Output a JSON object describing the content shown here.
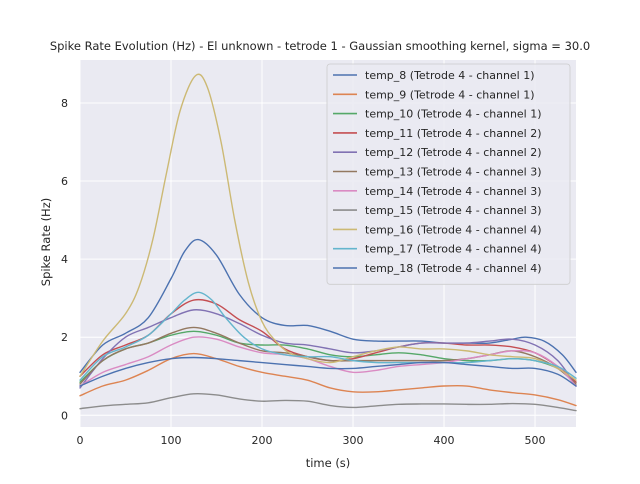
{
  "chart_data": {
    "type": "line",
    "title": "Spike Rate Evolution (Hz) - El unknown - tetrode 1 - Gaussian smoothing kernel, sigma = 30.0",
    "xlabel": "time (s)",
    "ylabel": "Spike Rate (Hz)",
    "xlim": [
      0,
      545
    ],
    "ylim": [
      -0.3,
      9.1
    ],
    "xticks": [
      0,
      100,
      200,
      300,
      400,
      500
    ],
    "yticks": [
      0,
      2,
      4,
      6,
      8
    ],
    "grid": true,
    "legend_position": "top-right",
    "background": "#eaeaf2",
    "series": [
      {
        "name": "temp_8 (Tetrode 4 - channel 1)",
        "color": "#4c72b0",
        "x": [
          0,
          25,
          50,
          75,
          100,
          115,
          130,
          150,
          175,
          200,
          225,
          250,
          275,
          300,
          325,
          350,
          375,
          400,
          425,
          450,
          475,
          490,
          510,
          530,
          545
        ],
        "y": [
          1.1,
          1.8,
          2.1,
          2.5,
          3.5,
          4.2,
          4.5,
          4.1,
          3.1,
          2.5,
          2.3,
          2.3,
          2.15,
          1.95,
          1.9,
          1.9,
          1.9,
          1.85,
          1.85,
          1.85,
          1.95,
          2.0,
          1.9,
          1.55,
          1.1
        ]
      },
      {
        "name": "temp_9 (Tetrode 4 - channel 1)",
        "color": "#dd8452",
        "x": [
          0,
          25,
          50,
          75,
          100,
          125,
          150,
          175,
          200,
          225,
          250,
          275,
          300,
          325,
          350,
          375,
          400,
          425,
          450,
          475,
          500,
          525,
          545
        ],
        "y": [
          0.5,
          0.75,
          0.9,
          1.15,
          1.45,
          1.58,
          1.45,
          1.25,
          1.1,
          1.0,
          0.9,
          0.7,
          0.6,
          0.6,
          0.65,
          0.7,
          0.75,
          0.75,
          0.65,
          0.58,
          0.52,
          0.4,
          0.25
        ]
      },
      {
        "name": "temp_10 (Tetrode 4 - channel 1)",
        "color": "#55a868",
        "x": [
          0,
          25,
          50,
          75,
          100,
          125,
          150,
          175,
          200,
          225,
          250,
          275,
          300,
          325,
          350,
          375,
          400,
          425,
          450,
          475,
          500,
          525,
          545
        ],
        "y": [
          0.85,
          1.4,
          1.7,
          1.85,
          2.05,
          2.15,
          2.05,
          1.85,
          1.8,
          1.8,
          1.7,
          1.55,
          1.5,
          1.55,
          1.6,
          1.55,
          1.45,
          1.4,
          1.4,
          1.45,
          1.4,
          1.2,
          0.85
        ]
      },
      {
        "name": "temp_11 (Tetrode 4 - channel 2)",
        "color": "#c44e52",
        "x": [
          0,
          25,
          50,
          75,
          100,
          125,
          150,
          175,
          200,
          225,
          250,
          275,
          300,
          325,
          350,
          375,
          400,
          425,
          450,
          475,
          500,
          525,
          545
        ],
        "y": [
          1.0,
          1.55,
          1.8,
          2.05,
          2.6,
          2.95,
          2.85,
          2.45,
          2.15,
          1.7,
          1.5,
          1.4,
          1.45,
          1.6,
          1.75,
          1.85,
          1.85,
          1.8,
          1.8,
          1.75,
          1.6,
          1.25,
          0.85
        ]
      },
      {
        "name": "temp_12 (Tetrode 4 - channel 2)",
        "color": "#8172b3",
        "x": [
          0,
          25,
          50,
          75,
          100,
          125,
          150,
          175,
          200,
          225,
          250,
          275,
          300,
          325,
          350,
          375,
          400,
          425,
          450,
          475,
          500,
          525,
          545
        ],
        "y": [
          0.7,
          1.45,
          2.0,
          2.25,
          2.5,
          2.7,
          2.6,
          2.35,
          2.05,
          1.85,
          1.8,
          1.7,
          1.6,
          1.65,
          1.75,
          1.85,
          1.85,
          1.85,
          1.9,
          1.95,
          1.8,
          1.4,
          0.75
        ]
      },
      {
        "name": "temp_13 (Tetrode 4 - channel 3)",
        "color": "#937860",
        "x": [
          0,
          25,
          50,
          75,
          100,
          125,
          150,
          175,
          200,
          225,
          250,
          275,
          300,
          325,
          350,
          375,
          400,
          425,
          450,
          475,
          500,
          525,
          545
        ],
        "y": [
          0.8,
          1.4,
          1.7,
          1.85,
          2.1,
          2.25,
          2.1,
          1.85,
          1.65,
          1.6,
          1.5,
          1.4,
          1.4,
          1.4,
          1.4,
          1.4,
          1.4,
          1.45,
          1.55,
          1.65,
          1.5,
          1.2,
          0.8
        ]
      },
      {
        "name": "temp_14 (Tetrode 4 - channel 3)",
        "color": "#da8bc3",
        "x": [
          0,
          25,
          50,
          75,
          100,
          125,
          150,
          175,
          200,
          225,
          250,
          275,
          300,
          325,
          350,
          375,
          400,
          425,
          450,
          475,
          500,
          525,
          545
        ],
        "y": [
          0.75,
          1.1,
          1.3,
          1.5,
          1.8,
          2.0,
          1.95,
          1.75,
          1.6,
          1.55,
          1.45,
          1.25,
          1.1,
          1.15,
          1.25,
          1.3,
          1.35,
          1.45,
          1.55,
          1.65,
          1.6,
          1.25,
          0.75
        ]
      },
      {
        "name": "temp_15 (Tetrode 4 - channel 3)",
        "color": "#8c8c8c",
        "x": [
          0,
          25,
          50,
          75,
          100,
          125,
          150,
          175,
          200,
          225,
          250,
          275,
          300,
          325,
          350,
          375,
          400,
          425,
          450,
          475,
          500,
          525,
          545
        ],
        "y": [
          0.17,
          0.24,
          0.28,
          0.32,
          0.45,
          0.55,
          0.52,
          0.42,
          0.36,
          0.38,
          0.36,
          0.25,
          0.2,
          0.24,
          0.28,
          0.29,
          0.29,
          0.28,
          0.28,
          0.3,
          0.28,
          0.2,
          0.12
        ]
      },
      {
        "name": "temp_16 (Tetrode 4 - channel 4)",
        "color": "#ccb974",
        "x": [
          0,
          25,
          50,
          65,
          80,
          95,
          110,
          127,
          140,
          155,
          170,
          185,
          200,
          215,
          230,
          250,
          275,
          300,
          325,
          350,
          375,
          400,
          425,
          450,
          475,
          500,
          525,
          545
        ],
        "y": [
          1.0,
          1.9,
          2.6,
          3.3,
          4.5,
          6.2,
          7.8,
          8.7,
          8.4,
          7.0,
          5.0,
          3.4,
          2.4,
          1.9,
          1.6,
          1.45,
          1.35,
          1.5,
          1.65,
          1.75,
          1.7,
          1.7,
          1.65,
          1.55,
          1.5,
          1.45,
          1.2,
          0.9
        ]
      },
      {
        "name": "temp_17 (Tetrode 4 - channel 4)",
        "color": "#64b5cd",
        "x": [
          0,
          25,
          50,
          75,
          100,
          115,
          130,
          145,
          160,
          180,
          200,
          225,
          250,
          275,
          300,
          325,
          350,
          375,
          400,
          425,
          450,
          475,
          500,
          525,
          545
        ],
        "y": [
          0.9,
          1.5,
          1.75,
          2.05,
          2.6,
          2.95,
          3.15,
          2.95,
          2.5,
          2.0,
          1.7,
          1.55,
          1.5,
          1.5,
          1.4,
          1.35,
          1.35,
          1.35,
          1.35,
          1.35,
          1.4,
          1.45,
          1.4,
          1.25,
          0.95
        ]
      },
      {
        "name": "temp_18 (Tetrode 4 - channel 4)",
        "color": "#4c72b0",
        "x": [
          0,
          25,
          50,
          75,
          100,
          125,
          150,
          175,
          200,
          225,
          250,
          275,
          300,
          325,
          350,
          375,
          400,
          425,
          450,
          475,
          500,
          525,
          545
        ],
        "y": [
          0.75,
          1.0,
          1.2,
          1.35,
          1.45,
          1.48,
          1.45,
          1.4,
          1.35,
          1.3,
          1.25,
          1.2,
          1.2,
          1.25,
          1.3,
          1.35,
          1.35,
          1.3,
          1.25,
          1.2,
          1.2,
          1.05,
          0.75
        ]
      }
    ]
  }
}
